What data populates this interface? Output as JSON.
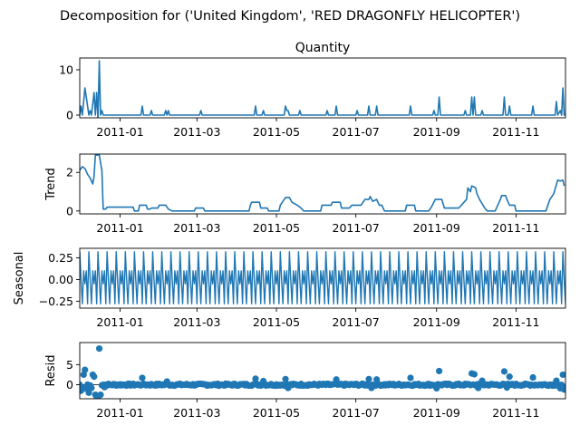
{
  "figure": {
    "suptitle": "Decomposition for ('United Kingdom', 'RED DRAGONFLY HELICOPTER')"
  },
  "chart_data": [
    {
      "type": "line",
      "panel": "observed",
      "title": "Quantity",
      "ylabel": "",
      "ylim": [
        -0.6,
        12.6
      ],
      "yticks": [
        0,
        10
      ],
      "color": "#1f77b4",
      "x_range": [
        "2010-12-01",
        "2011-12-09"
      ],
      "xticks": [
        "2011-01",
        "2011-03",
        "2011-05",
        "2011-07",
        "2011-09",
        "2011-11"
      ],
      "points": [
        [
          "2010-12-01",
          0
        ],
        [
          "2010-12-02",
          2
        ],
        [
          "2010-12-03",
          0
        ],
        [
          "2010-12-05",
          6
        ],
        [
          "2010-12-07",
          2
        ],
        [
          "2010-12-08",
          0
        ],
        [
          "2010-12-09",
          1
        ],
        [
          "2010-12-10",
          0
        ],
        [
          "2010-12-12",
          5
        ],
        [
          "2010-12-13",
          0
        ],
        [
          "2010-12-14",
          5
        ],
        [
          "2010-12-15",
          -1
        ],
        [
          "2010-12-16",
          12
        ],
        [
          "2010-12-17",
          0
        ],
        [
          "2010-12-18",
          1
        ],
        [
          "2010-12-19",
          0
        ],
        [
          "2011-01-17",
          0
        ],
        [
          "2011-01-18",
          2
        ],
        [
          "2011-01-19",
          0
        ],
        [
          "2011-01-24",
          0
        ],
        [
          "2011-01-25",
          1
        ],
        [
          "2011-01-26",
          0
        ],
        [
          "2011-02-04",
          0
        ],
        [
          "2011-02-05",
          1
        ],
        [
          "2011-02-06",
          0
        ],
        [
          "2011-02-07",
          1
        ],
        [
          "2011-02-08",
          0
        ],
        [
          "2011-03-03",
          0
        ],
        [
          "2011-03-04",
          1
        ],
        [
          "2011-03-05",
          0
        ],
        [
          "2011-04-14",
          0
        ],
        [
          "2011-04-15",
          2
        ],
        [
          "2011-04-16",
          0
        ],
        [
          "2011-04-20",
          0
        ],
        [
          "2011-04-21",
          1
        ],
        [
          "2011-04-22",
          0
        ],
        [
          "2011-05-07",
          0
        ],
        [
          "2011-05-08",
          2
        ],
        [
          "2011-05-09",
          1
        ],
        [
          "2011-05-10",
          1
        ],
        [
          "2011-05-11",
          0
        ],
        [
          "2011-05-18",
          0
        ],
        [
          "2011-05-19",
          1
        ],
        [
          "2011-05-20",
          0
        ],
        [
          "2011-06-08",
          0
        ],
        [
          "2011-06-09",
          1
        ],
        [
          "2011-06-10",
          0
        ],
        [
          "2011-06-15",
          0
        ],
        [
          "2011-06-16",
          2
        ],
        [
          "2011-06-17",
          0
        ],
        [
          "2011-07-01",
          0
        ],
        [
          "2011-07-02",
          1
        ],
        [
          "2011-07-03",
          0
        ],
        [
          "2011-07-10",
          0
        ],
        [
          "2011-07-11",
          2
        ],
        [
          "2011-07-12",
          0
        ],
        [
          "2011-07-16",
          0
        ],
        [
          "2011-07-17",
          2
        ],
        [
          "2011-07-18",
          0
        ],
        [
          "2011-08-11",
          0
        ],
        [
          "2011-08-12",
          2
        ],
        [
          "2011-08-13",
          0
        ],
        [
          "2011-08-29",
          0
        ],
        [
          "2011-08-30",
          1
        ],
        [
          "2011-08-31",
          0
        ],
        [
          "2011-09-02",
          0
        ],
        [
          "2011-09-03",
          4
        ],
        [
          "2011-09-04",
          0
        ],
        [
          "2011-09-22",
          0
        ],
        [
          "2011-09-23",
          1
        ],
        [
          "2011-09-24",
          0
        ],
        [
          "2011-09-27",
          0
        ],
        [
          "2011-09-28",
          4
        ],
        [
          "2011-09-29",
          0
        ],
        [
          "2011-09-30",
          4
        ],
        [
          "2011-10-01",
          0
        ],
        [
          "2011-10-05",
          0
        ],
        [
          "2011-10-06",
          1
        ],
        [
          "2011-10-07",
          0
        ],
        [
          "2011-10-22",
          0
        ],
        [
          "2011-10-23",
          4
        ],
        [
          "2011-10-24",
          0
        ],
        [
          "2011-10-26",
          0
        ],
        [
          "2011-10-27",
          2
        ],
        [
          "2011-10-28",
          0
        ],
        [
          "2011-11-13",
          0
        ],
        [
          "2011-11-14",
          2
        ],
        [
          "2011-11-15",
          0
        ],
        [
          "2011-12-01",
          0
        ],
        [
          "2011-12-02",
          3
        ],
        [
          "2011-12-03",
          0
        ],
        [
          "2011-12-05",
          1
        ],
        [
          "2011-12-06",
          0
        ],
        [
          "2011-12-07",
          6
        ],
        [
          "2011-12-08",
          0
        ],
        [
          "2011-12-09",
          0
        ]
      ]
    },
    {
      "type": "line",
      "panel": "trend",
      "title": "",
      "ylabel": "Trend",
      "ylim": [
        -0.15,
        2.95
      ],
      "yticks": [
        0,
        2
      ],
      "color": "#1f77b4",
      "x_range": [
        "2010-12-01",
        "2011-12-09"
      ],
      "xticks": [
        "2011-01",
        "2011-03",
        "2011-05",
        "2011-07",
        "2011-09",
        "2011-11"
      ],
      "points": [
        [
          "2010-12-01",
          2.1
        ],
        [
          "2010-12-03",
          2.3
        ],
        [
          "2010-12-05",
          2.2
        ],
        [
          "2010-12-07",
          1.9
        ],
        [
          "2010-12-09",
          1.7
        ],
        [
          "2010-12-11",
          1.4
        ],
        [
          "2010-12-12",
          1.8
        ],
        [
          "2010-12-13",
          2.9
        ],
        [
          "2010-12-16",
          2.9
        ],
        [
          "2010-12-18",
          2.1
        ],
        [
          "2010-12-19",
          0.1
        ],
        [
          "2010-12-21",
          0.1
        ],
        [
          "2010-12-22",
          0.2
        ],
        [
          "2011-01-11",
          0.2
        ],
        [
          "2011-01-12",
          0.0
        ],
        [
          "2011-01-15",
          0.0
        ],
        [
          "2011-01-16",
          0.3
        ],
        [
          "2011-01-21",
          0.3
        ],
        [
          "2011-01-22",
          0.1
        ],
        [
          "2011-01-24",
          0.1
        ],
        [
          "2011-01-25",
          0.15
        ],
        [
          "2011-01-30",
          0.15
        ],
        [
          "2011-01-31",
          0.3
        ],
        [
          "2011-02-05",
          0.3
        ],
        [
          "2011-02-07",
          0.1
        ],
        [
          "2011-02-10",
          0.0
        ],
        [
          "2011-02-27",
          0.0
        ],
        [
          "2011-02-28",
          0.15
        ],
        [
          "2011-03-06",
          0.15
        ],
        [
          "2011-03-07",
          0.0
        ],
        [
          "2011-04-10",
          0.0
        ],
        [
          "2011-04-11",
          0.3
        ],
        [
          "2011-04-12",
          0.45
        ],
        [
          "2011-04-18",
          0.45
        ],
        [
          "2011-04-19",
          0.15
        ],
        [
          "2011-04-24",
          0.15
        ],
        [
          "2011-04-25",
          0.0
        ],
        [
          "2011-05-03",
          0.0
        ],
        [
          "2011-05-04",
          0.3
        ],
        [
          "2011-05-06",
          0.5
        ],
        [
          "2011-05-08",
          0.7
        ],
        [
          "2011-05-11",
          0.7
        ],
        [
          "2011-05-13",
          0.45
        ],
        [
          "2011-05-17",
          0.3
        ],
        [
          "2011-05-20",
          0.15
        ],
        [
          "2011-05-22",
          0.0
        ],
        [
          "2011-06-04",
          0.0
        ],
        [
          "2011-06-05",
          0.3
        ],
        [
          "2011-06-12",
          0.3
        ],
        [
          "2011-06-13",
          0.45
        ],
        [
          "2011-06-19",
          0.45
        ],
        [
          "2011-06-20",
          0.15
        ],
        [
          "2011-06-26",
          0.15
        ],
        [
          "2011-06-28",
          0.3
        ],
        [
          "2011-07-04",
          0.3
        ],
        [
          "2011-07-05",
          0.3
        ],
        [
          "2011-07-08",
          0.6
        ],
        [
          "2011-07-11",
          0.6
        ],
        [
          "2011-07-12",
          0.75
        ],
        [
          "2011-07-14",
          0.5
        ],
        [
          "2011-07-17",
          0.6
        ],
        [
          "2011-07-19",
          0.3
        ],
        [
          "2011-07-21",
          0.3
        ],
        [
          "2011-07-23",
          0.0
        ],
        [
          "2011-08-08",
          0.0
        ],
        [
          "2011-08-09",
          0.3
        ],
        [
          "2011-08-15",
          0.3
        ],
        [
          "2011-08-16",
          0.0
        ],
        [
          "2011-08-26",
          0.0
        ],
        [
          "2011-08-28",
          0.2
        ],
        [
          "2011-08-31",
          0.6
        ],
        [
          "2011-09-05",
          0.6
        ],
        [
          "2011-09-07",
          0.15
        ],
        [
          "2011-09-18",
          0.15
        ],
        [
          "2011-09-20",
          0.3
        ],
        [
          "2011-09-24",
          0.6
        ],
        [
          "2011-09-25",
          1.2
        ],
        [
          "2011-09-27",
          1.0
        ],
        [
          "2011-09-28",
          1.3
        ],
        [
          "2011-10-01",
          1.2
        ],
        [
          "2011-10-02",
          0.9
        ],
        [
          "2011-10-04",
          0.6
        ],
        [
          "2011-10-08",
          0.15
        ],
        [
          "2011-10-10",
          0.0
        ],
        [
          "2011-10-16",
          0.0
        ],
        [
          "2011-10-18",
          0.3
        ],
        [
          "2011-10-20",
          0.6
        ],
        [
          "2011-10-21",
          0.8
        ],
        [
          "2011-10-24",
          0.8
        ],
        [
          "2011-10-25",
          0.6
        ],
        [
          "2011-10-27",
          0.3
        ],
        [
          "2011-10-31",
          0.3
        ],
        [
          "2011-11-01",
          0.0
        ],
        [
          "2011-11-24",
          0.0
        ],
        [
          "2011-11-27",
          0.6
        ],
        [
          "2011-11-30",
          0.9
        ],
        [
          "2011-12-03",
          1.6
        ],
        [
          "2011-12-05",
          1.55
        ],
        [
          "2011-12-07",
          1.6
        ],
        [
          "2011-12-08",
          1.3
        ]
      ]
    },
    {
      "type": "line",
      "panel": "seasonal",
      "title": "",
      "ylabel": "Seasonal",
      "ylim": [
        -0.33,
        0.36
      ],
      "yticks": [
        0.25,
        0.0,
        -0.25
      ],
      "ytick_labels": [
        "0.25",
        "0.00",
        "−0.25"
      ],
      "color": "#1f77b4",
      "x_range": [
        "2010-12-01",
        "2011-12-09"
      ],
      "xticks": [
        "2011-01",
        "2011-03",
        "2011-05",
        "2011-07",
        "2011-09",
        "2011-11"
      ],
      "period_days": 7,
      "weekly_pattern": [
        0.32,
        0.0,
        -0.28,
        0.1,
        -0.05,
        0.1,
        -0.28
      ]
    },
    {
      "type": "scatter",
      "panel": "resid",
      "title": "",
      "ylabel": "Resid",
      "ylim": [
        -3.5,
        10.5
      ],
      "yticks": [
        0,
        5
      ],
      "color": "#1f77b4",
      "x_range": [
        "2010-12-01",
        "2011-12-09"
      ],
      "xticks": [
        "2011-01",
        "2011-03",
        "2011-05",
        "2011-07",
        "2011-09",
        "2011-11"
      ],
      "baseline_noise": 0.25,
      "spikes": [
        [
          "2010-12-02",
          -1.5
        ],
        [
          "2010-12-03",
          -0.8
        ],
        [
          "2010-12-04",
          2.5
        ],
        [
          "2010-12-05",
          3.7
        ],
        [
          "2010-12-06",
          -1.0
        ],
        [
          "2010-12-08",
          -2.0
        ],
        [
          "2010-12-10",
          -0.8
        ],
        [
          "2010-12-11",
          2.5
        ],
        [
          "2010-12-12",
          2.0
        ],
        [
          "2010-12-13",
          -2.5
        ],
        [
          "2010-12-14",
          -3.0
        ],
        [
          "2010-12-15",
          -3.5
        ],
        [
          "2010-12-16",
          9.0
        ],
        [
          "2010-12-17",
          -2.5
        ],
        [
          "2010-12-20",
          -0.6
        ],
        [
          "2011-01-18",
          1.7
        ],
        [
          "2011-02-06",
          0.8
        ],
        [
          "2011-04-15",
          1.5
        ],
        [
          "2011-04-21",
          0.9
        ],
        [
          "2011-05-08",
          1.4
        ],
        [
          "2011-05-10",
          -0.8
        ],
        [
          "2011-06-16",
          1.3
        ],
        [
          "2011-07-11",
          1.4
        ],
        [
          "2011-07-17",
          1.3
        ],
        [
          "2011-07-13",
          -0.8
        ],
        [
          "2011-08-12",
          1.7
        ],
        [
          "2011-09-03",
          3.4
        ],
        [
          "2011-09-01",
          -0.9
        ],
        [
          "2011-09-28",
          2.8
        ],
        [
          "2011-09-30",
          2.6
        ],
        [
          "2011-10-03",
          -0.8
        ],
        [
          "2011-10-06",
          1.0
        ],
        [
          "2011-10-23",
          3.3
        ],
        [
          "2011-10-27",
          2.0
        ],
        [
          "2011-10-25",
          -0.7
        ],
        [
          "2011-11-14",
          1.8
        ],
        [
          "2011-12-02",
          1.0
        ],
        [
          "2011-12-05",
          -0.9
        ],
        [
          "2011-12-07",
          2.5
        ],
        [
          "2011-12-08",
          -1.2
        ],
        [
          "2011-12-09",
          -0.7
        ]
      ]
    }
  ]
}
